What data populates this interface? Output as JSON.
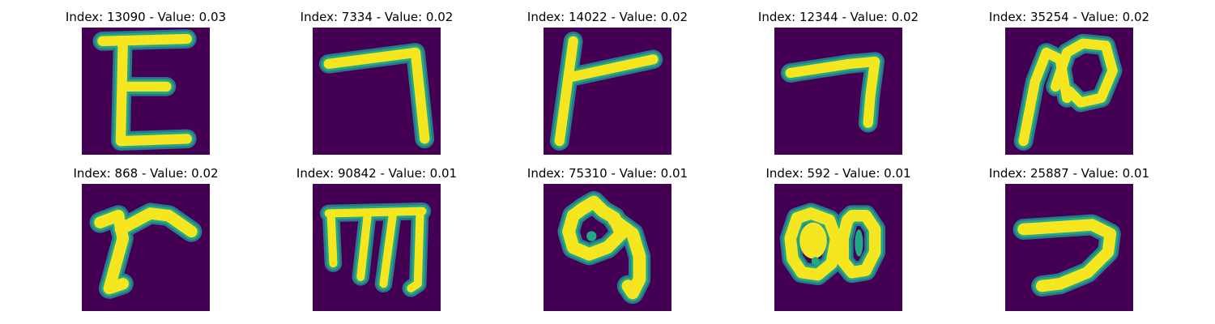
{
  "colors": {
    "background": "#440154",
    "stroke_core": "#f5e61f",
    "stroke_mid": "#22a884",
    "stroke_edge": "#2a788e"
  },
  "panels": [
    {
      "title": "Index: 13090 - Value: 0.03",
      "glyph": "letter-e-like"
    },
    {
      "title": "Index: 7334 - Value: 0.02",
      "glyph": "hook-down-right"
    },
    {
      "title": "Index: 14022 - Value: 0.02",
      "glyph": "t-sideways"
    },
    {
      "title": "Index: 12344 - Value: 0.02",
      "glyph": "hook-small"
    },
    {
      "title": "Index: 35254 - Value: 0.02",
      "glyph": "loop-n"
    },
    {
      "title": "Index: 868 - Value: 0.02",
      "glyph": "r-like"
    },
    {
      "title": "Index: 90842 - Value: 0.01",
      "glyph": "m-like"
    },
    {
      "title": "Index: 75310 - Value: 0.01",
      "glyph": "loop-tail"
    },
    {
      "title": "Index: 592 - Value: 0.01",
      "glyph": "double-loop"
    },
    {
      "title": "Index: 25887 - Value: 0.01",
      "glyph": "seven-like"
    }
  ]
}
